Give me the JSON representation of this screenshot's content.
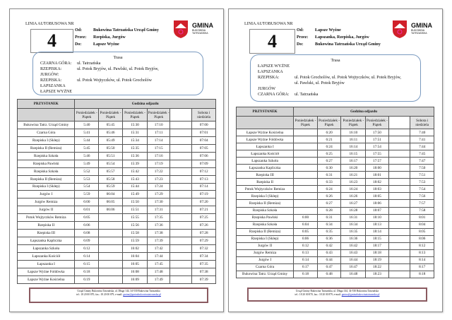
{
  "pages": [
    {
      "linia": "LINIA AUTOBUSOWA NR",
      "number": "4",
      "od_label": "Od:",
      "od": "Bukowina Tatrzańska Urząd Gminy",
      "przez_label": "Przez:",
      "przez": "Rzepiska, Jurgów",
      "do_label": "Do:",
      "do": "Łapsze Wyżne",
      "trasa_title": "Trasa",
      "trasa": [
        [
          "CZARNA GÓRA:",
          "ul. Tatrzańska"
        ],
        [
          "RZEPISKA:",
          "ul. Potok Bryjów, ul. Pawlski, ul. Potok Bryjów,"
        ],
        [
          "JURGÓW:",
          ""
        ],
        [
          "RZEPISKA:",
          "ul. Potok Wojtyczków, ul. Potok Grocholów"
        ],
        [
          "ŁAPSZANKA",
          ""
        ],
        [
          "ŁAPSZE WYŻNE",
          ""
        ]
      ],
      "col_stop": "PRZYSTANEK",
      "col_times": "Godzina odjazdu",
      "subheaders": [
        "Poniedziałek - Piątek",
        "Poniedziałek - Piątek",
        "Poniedziałek - Piątek",
        "Poniedziałek - Piątek",
        "",
        "Sobota i niedziela"
      ],
      "rows": [
        [
          "Bukowina Tatrz. Urząd Gminy",
          "5:40",
          "05:45",
          "15:30",
          "17:10",
          "",
          "07:00"
        ],
        [
          "Czarna Góra",
          "5:41",
          "05:46",
          "15:31",
          "17:11",
          "",
          "07:01"
        ],
        [
          "Rzepiska I (Sklep)",
          "5:44",
          "05:49",
          "15:34",
          "17:14",
          "",
          "07:04"
        ],
        [
          "Rzepiska II (Remiza)",
          "5:45",
          "05:50",
          "15:35",
          "17:15",
          "",
          "07:05"
        ],
        [
          "Rzepiska Szkoła",
          "5:46",
          "05:51",
          "15:36",
          "17:16",
          "",
          "07:06"
        ],
        [
          "Rzepiska Pawlski",
          "5:49",
          "05:54",
          "15:39",
          "17:19",
          "",
          "07:09"
        ],
        [
          "Rzepiska Szkoła",
          "5:52",
          "05:57",
          "15:42",
          "17:22",
          "",
          "07:12"
        ],
        [
          "Rzepiska II (Remiza)",
          "5:53",
          "05:58",
          "15:43",
          "17:23",
          "",
          "07:13"
        ],
        [
          "Rzepiska I (Sklep)",
          "5:54",
          "05:59",
          "15:44",
          "17:24",
          "",
          "07:14"
        ],
        [
          "Jurgów I",
          "5:59",
          "06:04",
          "15:49",
          "17:29",
          "",
          "07:19"
        ],
        [
          "Jurgów Remiza",
          "6:00",
          "06:05",
          "15:50",
          "17:30",
          "",
          "07:20"
        ],
        [
          "Jurgów II",
          "6:01",
          "06:06",
          "15:51",
          "17:31",
          "",
          "07:21"
        ],
        [
          "Potok Wojtyczków Remiza",
          "6:05",
          "",
          "15:55",
          "17:35",
          "",
          "07:25"
        ],
        [
          "Rzepiska II",
          "6:06",
          "",
          "15:56",
          "17:36",
          "",
          "07:26"
        ],
        [
          "Rzepiska III",
          "6:08",
          "",
          "15:58",
          "17:38",
          "",
          "07:28"
        ],
        [
          "Łapszanka Kapliczka",
          "6:09",
          "",
          "15:59",
          "17:39",
          "",
          "07:29"
        ],
        [
          "Łapszanka Szkoła",
          "6:12",
          "",
          "16:02",
          "17:42",
          "",
          "07:32"
        ],
        [
          "Łapszanka Kościół",
          "6:14",
          "",
          "16:04",
          "17:44",
          "",
          "07:34"
        ],
        [
          "Łapszanka I",
          "6:15",
          "",
          "16:05",
          "17:45",
          "",
          "07:35"
        ],
        [
          "Łapsze Wyżne Foldówka",
          "6:18",
          "",
          "16:08",
          "17:48",
          "",
          "07:38"
        ],
        [
          "Łapsze Wyżne Kościelna",
          "6:19",
          "",
          "16:09",
          "17:49",
          "",
          "07:39"
        ]
      ],
      "footer_line1": "Urząd Gminy Bukowina Tatrzańska, ul. Długa 144, 34-530 Bukowina Tatrzańska",
      "footer_line2": "tel.: 18 20 00 870, fax.: 18 20 00 879, e-mail: ",
      "footer_email": "gmina@gminabukowinatatrzanska.pl"
    },
    {
      "linia": "LINIA AUTOBUSOWA NR",
      "number": "4",
      "od_label": "Od:",
      "od": "Łapsze Wyżne",
      "przez_label": "Przez:",
      "przez": "Łapszanka, Rzepiska, Jurgów",
      "do_label": "Do:",
      "do": "Bukowina Tatrzańska Urząd Gminy",
      "trasa_title": "Trasa",
      "trasa": [
        [
          "ŁAPSZE WYŻNE",
          ""
        ],
        [
          "ŁAPSZANKA",
          ""
        ],
        [
          "RZEPISKA:",
          "ul. Potok Grocholów, ul. Potok Wojtyczków, ul. Potok Bryjów,"
        ],
        [
          "",
          "ul. Pawlski, ul. Potok Bryjów"
        ],
        [
          "JURGÓW",
          ""
        ],
        [
          "CZARNA GÓRA:",
          "ul. Tatrzańska"
        ]
      ],
      "col_stop": "PRZYSTANEK",
      "col_times": "Godzina odjazdu",
      "subheaders": [
        "Poniedziałek - Piątek",
        "Poniedziałek - Piątek",
        "Poniedziałek - Piątek",
        "Poniedziałek - Piątek",
        "",
        "Sobota i niedziela"
      ],
      "rows": [
        [
          "Łapsze Wyżne Kościelna",
          "",
          "6:20",
          "16:10",
          "17:50",
          "",
          "7:40"
        ],
        [
          "Łapsze Wyżne Foldówka",
          "",
          "6:21",
          "16:11",
          "17:51",
          "",
          "7:41"
        ],
        [
          "Łapszanka I",
          "",
          "6:24",
          "16:14",
          "17:54",
          "",
          "7:44"
        ],
        [
          "Łapszanka Kościół",
          "",
          "6:25",
          "16:15",
          "17:55",
          "",
          "7:45"
        ],
        [
          "Łapszanka Szkoła",
          "",
          "6:27",
          "16:17",
          "17:57",
          "",
          "7:47"
        ],
        [
          "Łapszanka Kapliczka",
          "",
          "6:30",
          "16:20",
          "18:00",
          "",
          "7:50"
        ],
        [
          "Rzepiska III",
          "",
          "6:31",
          "16:21",
          "18:01",
          "",
          "7:51"
        ],
        [
          "Rzepiska II",
          "",
          "6:33",
          "16:23",
          "18:02",
          "",
          "7:53"
        ],
        [
          "Potok Wojtyczków Remiza",
          "",
          "6:24",
          "16:24",
          "18:03",
          "",
          "7:54"
        ],
        [
          "Rzepiska I (Sklep)",
          "",
          "6:26",
          "16:26",
          "18:05",
          "",
          "7:56"
        ],
        [
          "Rzepiska II (Remiza)",
          "",
          "6:27",
          "16:27",
          "18:06",
          "",
          "7:57"
        ],
        [
          "Rzepiska Szkoła",
          "",
          "6:28",
          "16:28",
          "18:07",
          "",
          "7:58"
        ],
        [
          "Rzepiska Pawlski",
          "6:00",
          "6:31",
          "16:31",
          "18:10",
          "",
          "8:01"
        ],
        [
          "Rzepiska Szkoła",
          "6:04",
          "6:34",
          "16:34",
          "18:13",
          "",
          "8:04"
        ],
        [
          "Rzepiska II (Remiza)",
          "6:05",
          "6:35",
          "16:35",
          "18:14",
          "",
          "8:05"
        ],
        [
          "Rzepiska I (Sklep)",
          "6:06",
          "6:36",
          "16:36",
          "18:15",
          "",
          "8:06"
        ],
        [
          "Jurgów II",
          "6:12",
          "6:42",
          "16:42",
          "18:17",
          "",
          "8:12"
        ],
        [
          "Jurgów Remiza",
          "6:13",
          "6:43",
          "16:43",
          "18:18",
          "",
          "8:13"
        ],
        [
          "Jurgów I",
          "6:14",
          "6:44",
          "16:44",
          "18:19",
          "",
          "8:14"
        ],
        [
          "Czarna Góra",
          "6:17",
          "6:47",
          "16:47",
          "18:22",
          "",
          "8:17"
        ],
        [
          "Bukowina Tatrz. Urząd Gminy",
          "6:18",
          "6:48",
          "16:48",
          "18:23",
          "",
          "8:18"
        ]
      ],
      "footer_line1": "Urząd Gminy Bukowina Tatrzańska, ul. Długa 144, 34-530 Bukowina Tatrzańska",
      "footer_line2": "tel.: 18 20 00 870, fax.: 18 20 00 879, e-mail: ",
      "footer_email": "gmina@gminabukowinatatrzanska.pl"
    }
  ],
  "logo": {
    "title": "GMINA",
    "sub1": "BUKOWINA",
    "sub2": "TATRZAŃSKA",
    "color": "#d0202a"
  }
}
